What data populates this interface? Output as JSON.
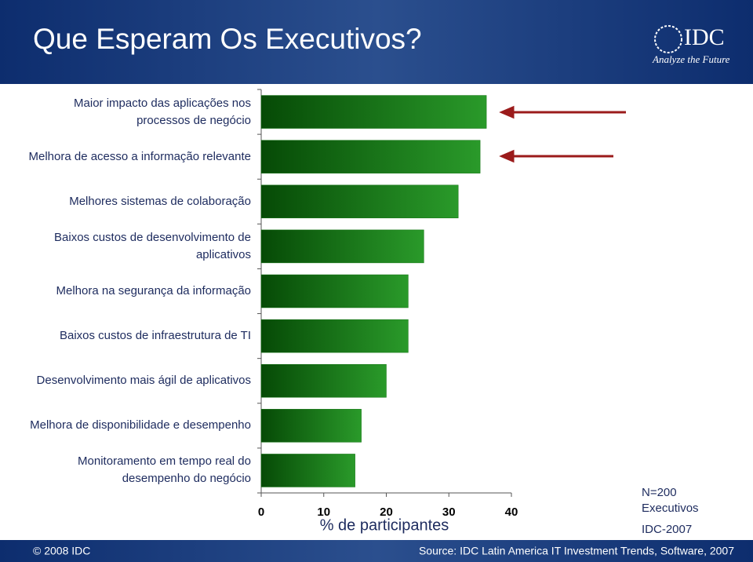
{
  "slide": {
    "logo": "IDC",
    "tagline": "Analyze the Future",
    "copyright": "© 2008 IDC",
    "source": "Source: IDC Latin America IT Investment Trends, Software, 2007"
  },
  "chart_data": {
    "type": "hbar",
    "title": "Que Esperam Os Executivos?",
    "categories": [
      "Maior impacto das aplicações nos\nprocessos de negócio",
      "Melhora de acesso a informação relevante",
      "Melhores sistemas de colaboração",
      "Baixos custos de desenvolvimento de\naplicativos",
      "Melhora na segurança da informação",
      "Baixos custos de infraestrutura de TI",
      "Desenvolvimento mais ágil de aplicativos",
      "Melhora de disponibilidade e desempenho",
      "Monitoramento em tempo real do\ndesempenho do negócio"
    ],
    "values": [
      36,
      35,
      31.5,
      26,
      23.5,
      23.5,
      20,
      16,
      15
    ],
    "color": "#127312",
    "xlim": [
      0,
      40
    ],
    "xticks": [
      0,
      10,
      20,
      30,
      40
    ],
    "xlabel": "% de participantes",
    "annotations": [
      "N=200\nExecutivos",
      "IDC-2007"
    ]
  }
}
